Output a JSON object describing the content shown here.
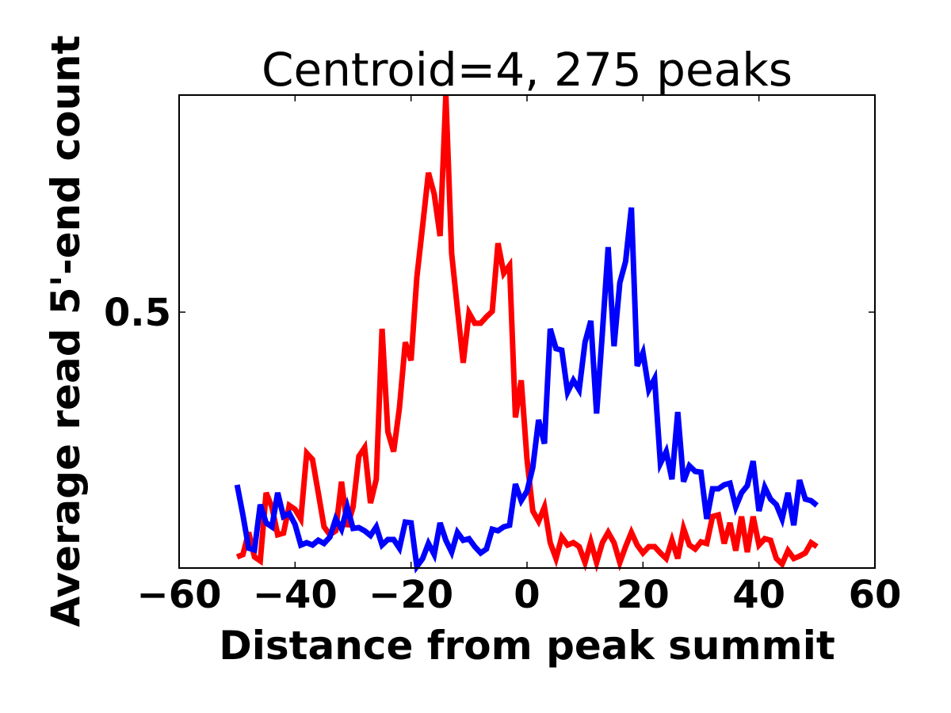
{
  "chart_data": {
    "type": "line",
    "title": "Centroid=4, 275 peaks",
    "xlabel": "Distance from peak summit",
    "ylabel": "Average read 5'-end count",
    "xlim": [
      -60,
      60
    ],
    "ylim": [
      0.177,
      0.774
    ],
    "xticks": [
      "−60",
      "−40",
      "−20",
      "0",
      "20",
      "40",
      "60"
    ],
    "xtick_values": [
      -60,
      -40,
      -20,
      0,
      20,
      40,
      60
    ],
    "yticks": [
      "0.5"
    ],
    "ytick_values": [
      0.5
    ],
    "grid": false,
    "x_start": -50,
    "x_step": 1,
    "series": [
      {
        "color": "#ff0000",
        "values": [
          0.191,
          0.194,
          0.222,
          0.191,
          0.186,
          0.272,
          0.254,
          0.219,
          0.221,
          0.256,
          0.251,
          0.239,
          0.322,
          0.314,
          0.272,
          0.229,
          0.219,
          0.224,
          0.286,
          0.229,
          0.254,
          0.318,
          0.329,
          0.259,
          0.289,
          0.479,
          0.349,
          0.324,
          0.379,
          0.462,
          0.439,
          0.544,
          0.609,
          0.676,
          0.649,
          0.596,
          0.774,
          0.574,
          0.504,
          0.436,
          0.499,
          0.486,
          0.486,
          0.494,
          0.501,
          0.587,
          0.549,
          0.559,
          0.367,
          0.414,
          0.314,
          0.249,
          0.236,
          0.254,
          0.209,
          0.189,
          0.216,
          0.206,
          0.209,
          0.204,
          0.184,
          0.21,
          0.184,
          0.209,
          0.222,
          0.209,
          0.184,
          0.204,
          0.222,
          0.206,
          0.196,
          0.204,
          0.204,
          0.196,
          0.189,
          0.212,
          0.189,
          0.227,
          0.206,
          0.201,
          0.21,
          0.208,
          0.242,
          0.244,
          0.208,
          0.234,
          0.199,
          0.242,
          0.197,
          0.242,
          0.206,
          0.214,
          0.212,
          0.189,
          0.182,
          0.199,
          0.189,
          0.192,
          0.196,
          0.209,
          0.204
        ]
      },
      {
        "color": "#0000ff",
        "values": [
          0.282,
          0.244,
          0.202,
          0.2,
          0.257,
          0.234,
          0.229,
          0.272,
          0.242,
          0.246,
          0.232,
          0.206,
          0.209,
          0.206,
          0.212,
          0.208,
          0.216,
          0.239,
          0.226,
          0.254,
          0.227,
          0.228,
          0.224,
          0.218,
          0.229,
          0.206,
          0.213,
          0.213,
          0.202,
          0.235,
          0.234,
          0.179,
          0.189,
          0.208,
          0.194,
          0.234,
          0.212,
          0.197,
          0.222,
          0.212,
          0.214,
          0.204,
          0.196,
          0.201,
          0.226,
          0.224,
          0.229,
          0.231,
          0.283,
          0.262,
          0.274,
          0.304,
          0.364,
          0.334,
          0.479,
          0.454,
          0.452,
          0.399,
          0.414,
          0.402,
          0.462,
          0.489,
          0.372,
          0.474,
          0.582,
          0.457,
          0.537,
          0.564,
          0.632,
          0.432,
          0.449,
          0.402,
          0.416,
          0.309,
          0.324,
          0.289,
          0.374,
          0.286,
          0.306,
          0.299,
          0.298,
          0.239,
          0.277,
          0.277,
          0.282,
          0.284,
          0.254,
          0.272,
          0.281,
          0.312,
          0.249,
          0.279,
          0.264,
          0.257,
          0.239,
          0.272,
          0.231,
          0.288,
          0.264,
          0.262,
          0.256
        ]
      }
    ]
  }
}
